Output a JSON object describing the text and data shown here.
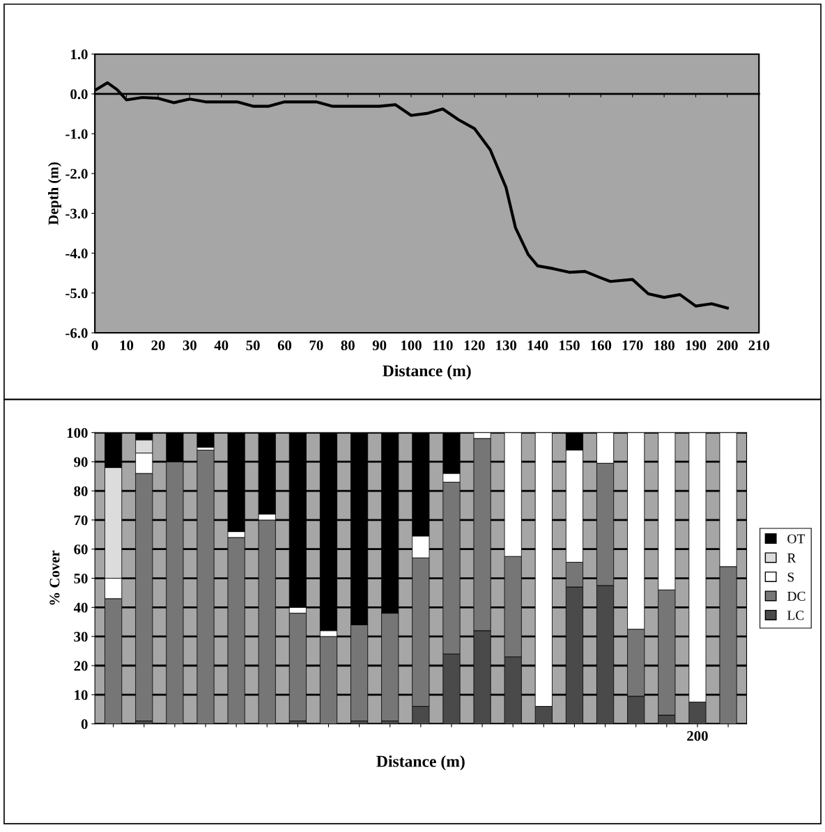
{
  "chart_data": [
    {
      "type": "line",
      "xlabel": "Distance (m)",
      "ylabel": "Depth (m)",
      "x": [
        0,
        4,
        7,
        10,
        15,
        20,
        25,
        30,
        35,
        45,
        50,
        55,
        60,
        70,
        75,
        90,
        95,
        100,
        105,
        110,
        115,
        120,
        125,
        130,
        133,
        137,
        140,
        145,
        150,
        155,
        160,
        163,
        170,
        175,
        180,
        185,
        190,
        195,
        200
      ],
      "series": [
        {
          "color": "#000000",
          "values": [
            0.09,
            0.28,
            0.11,
            -0.15,
            -0.09,
            -0.11,
            -0.22,
            -0.13,
            -0.2,
            -0.2,
            -0.31,
            -0.31,
            -0.2,
            -0.2,
            -0.31,
            -0.31,
            -0.27,
            -0.54,
            -0.49,
            -0.38,
            -0.65,
            -0.87,
            -1.4,
            -2.35,
            -3.36,
            -4.03,
            -4.32,
            -4.39,
            -4.48,
            -4.46,
            -4.62,
            -4.71,
            -4.66,
            -5.02,
            -5.11,
            -5.04,
            -5.33,
            -5.27,
            -5.38
          ]
        }
      ],
      "xlim": [
        0,
        210
      ],
      "xticks": [
        0,
        10,
        20,
        30,
        40,
        50,
        60,
        70,
        80,
        90,
        100,
        110,
        120,
        130,
        140,
        150,
        160,
        170,
        180,
        190,
        200,
        210
      ],
      "ylim": [
        -6,
        1
      ],
      "yticks": [
        {
          "value": -6,
          "label": "-6.0"
        },
        {
          "value": -5,
          "label": "-5.0"
        },
        {
          "value": -4,
          "label": "-4.0"
        },
        {
          "value": -3,
          "label": "-3.0"
        },
        {
          "value": -2,
          "label": "-2.0"
        },
        {
          "value": -1,
          "label": "-1.0"
        },
        {
          "value": 0,
          "label": "0.0"
        },
        {
          "value": 1,
          "label": "1.0"
        }
      ],
      "legend": false
    },
    {
      "type": "bar",
      "stacked": true,
      "xlabel": "Distance (m)",
      "ylabel": "% Cover",
      "categories": [
        null,
        null,
        null,
        null,
        null,
        null,
        null,
        null,
        null,
        null,
        null,
        null,
        null,
        null,
        null,
        null,
        null,
        null,
        null,
        "200",
        null
      ],
      "series": [
        {
          "name": "LC",
          "color": "#4a4a4a",
          "values": [
            0,
            1,
            0,
            0,
            0,
            0,
            1,
            0,
            1,
            1,
            6,
            24,
            32,
            23,
            6,
            47,
            47.5,
            9.5,
            3,
            7.5,
            0
          ]
        },
        {
          "name": "DC",
          "color": "#767676",
          "values": [
            43,
            85,
            90,
            94,
            64,
            70,
            37,
            30,
            33,
            37,
            51,
            59,
            66,
            34.5,
            0,
            8.5,
            42,
            23,
            43,
            0,
            54
          ]
        },
        {
          "name": "S",
          "color": "#ffffff",
          "values": [
            7,
            7,
            0,
            1,
            2,
            2,
            2,
            2,
            0,
            0,
            7.5,
            3,
            2,
            42.5,
            94,
            38.5,
            10.5,
            67.5,
            54,
            92.5,
            46
          ]
        },
        {
          "name": "R",
          "color": "#dcdcdc",
          "values": [
            38,
            4.5,
            0,
            0,
            0,
            0,
            0,
            0,
            0,
            0,
            0,
            0,
            0,
            0,
            0,
            0,
            0,
            0,
            0,
            0,
            0
          ]
        },
        {
          "name": "OT",
          "color": "#000000",
          "values": [
            12,
            2.5,
            10,
            5,
            34,
            28,
            60,
            68,
            66,
            62,
            35.5,
            14,
            0,
            0,
            0,
            6,
            0,
            0,
            0,
            0,
            0
          ]
        }
      ],
      "ylim": [
        0,
        100
      ],
      "yticks": [
        0,
        10,
        20,
        30,
        40,
        50,
        60,
        70,
        80,
        90,
        100
      ],
      "grid": "y",
      "legend": "right"
    }
  ]
}
